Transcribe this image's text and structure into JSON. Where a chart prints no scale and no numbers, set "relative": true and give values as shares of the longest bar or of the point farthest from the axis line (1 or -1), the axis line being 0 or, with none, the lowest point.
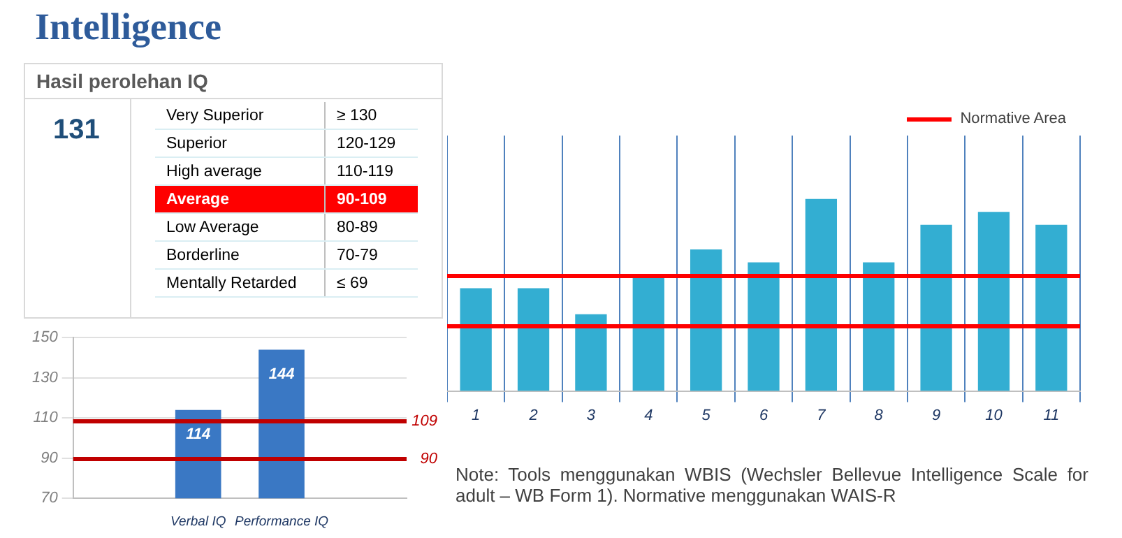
{
  "chart_data": [
    {
      "type": "other",
      "title": "Intelligence",
      "subtitle": "Hasil perolehan IQ",
      "annotations": [
        "131"
      ],
      "categories": [
        "Very Superior",
        "Superior",
        "High average",
        "Average",
        "Low Average",
        "Borderline",
        "Mentally Retarded"
      ],
      "value_labels": [
        "≥ 130",
        "120-129",
        "110-119",
        "90-109",
        "80-89",
        "70-79",
        "≤ 69"
      ],
      "colors": [
        "#ffffff",
        "#ffffff",
        "#ffffff",
        "#ff0000",
        "#ffffff",
        "#ffffff",
        "#ffffff"
      ]
    },
    {
      "type": "bar",
      "categories": [
        null,
        "Verbal IQ",
        "Performance IQ",
        null
      ],
      "values": [
        null,
        114,
        144,
        null
      ],
      "color": "#3a78c4",
      "ylim": [
        70,
        150
      ],
      "yticks": [
        70,
        90,
        110,
        130,
        150
      ],
      "grid": "y",
      "data_labels": true,
      "ref_lines": [
        {
          "axis": "y",
          "value": 109,
          "label": "109",
          "color": "#c00000"
        },
        {
          "axis": "y",
          "value": 90,
          "label": "90",
          "color": "#c00000"
        }
      ]
    },
    {
      "type": "bar",
      "relative": true,
      "categories": [
        "1",
        "2",
        "3",
        "4",
        "5",
        "6",
        "7",
        "8",
        "9",
        "10",
        "11"
      ],
      "values": [
        0.535,
        0.535,
        0.4,
        0.602,
        0.737,
        0.67,
        1,
        0.67,
        0.865,
        0.933,
        0.865
      ],
      "color": "#33aed2",
      "grid": "x",
      "legend": "top right",
      "ref_lines": [
        {
          "axis": "y",
          "value": 0.602,
          "label": "Normative Area",
          "color": "#ff0000"
        },
        {
          "axis": "y",
          "value": 0.339,
          "color": "#ff0000"
        }
      ],
      "annotations": [
        "Note:  Tools menggunakan WBIS (Wechsler Bellevue Intelligence Scale for adult – WB Form 1). Normative menggunakan WAIS-R"
      ]
    }
  ]
}
